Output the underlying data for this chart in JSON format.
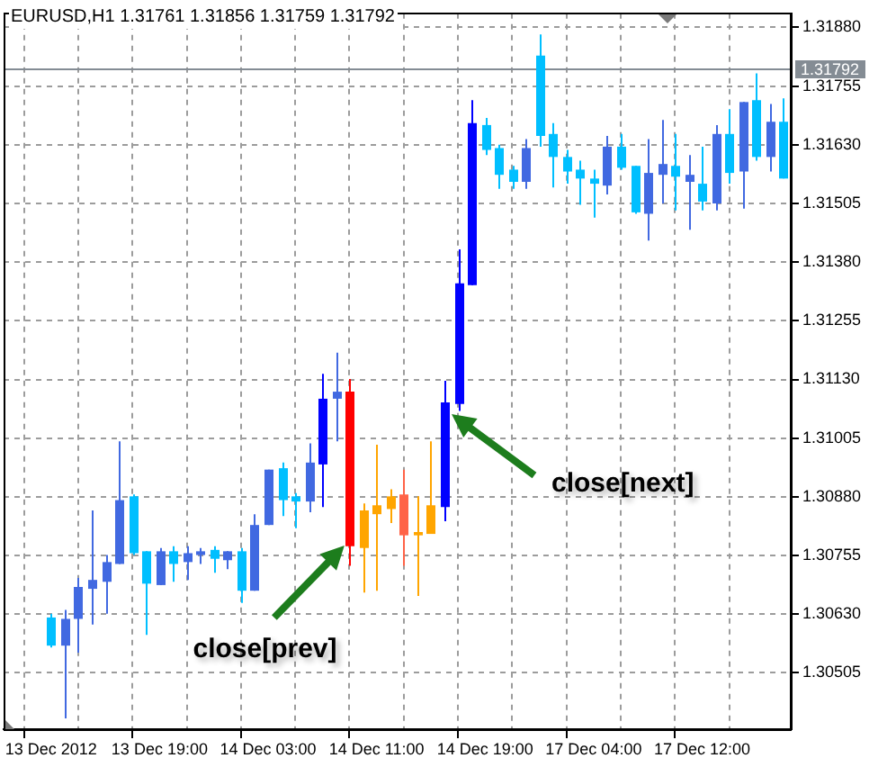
{
  "chart_data": {
    "type": "candlestick",
    "title": "EURUSD,H1 1.31761 1.31856 1.31759 1.31792",
    "categories": [
      "13 Dec 2012",
      null,
      null,
      null,
      null,
      null,
      null,
      null,
      "13 Dec 19:00",
      null,
      null,
      null,
      null,
      null,
      null,
      null,
      "14 Dec 03:00",
      null,
      null,
      null,
      null,
      null,
      null,
      null,
      "14 Dec 11:00",
      null,
      null,
      null,
      null,
      null,
      null,
      null,
      "14 Dec 19:00",
      null,
      null,
      null,
      null,
      null,
      null,
      null,
      "17 Dec 04:00",
      null,
      null,
      null,
      null,
      null,
      null,
      null,
      "17 Dec 12:00",
      null,
      null,
      null,
      null,
      null,
      null
    ],
    "ohlc": [
      [
        1.30623,
        1.30631,
        1.30559,
        1.30563
      ],
      [
        1.30563,
        1.30639,
        1.30408,
        1.3062
      ],
      [
        1.3062,
        1.30707,
        1.30548,
        1.30688
      ],
      [
        1.30684,
        1.30851,
        1.30608,
        1.30703
      ],
      [
        1.30699,
        1.30756,
        1.30631,
        1.30741
      ],
      [
        1.30737,
        1.30998,
        1.30737,
        1.30873
      ],
      [
        1.30881,
        1.30885,
        1.30756,
        1.3076
      ],
      [
        1.30764,
        1.30764,
        1.30586,
        1.30695
      ],
      [
        1.30692,
        1.30771,
        1.30692,
        1.30764
      ],
      [
        1.30764,
        1.30775,
        1.30699,
        1.30737
      ],
      [
        1.30741,
        1.30775,
        1.30703,
        1.3076
      ],
      [
        1.30756,
        1.30771,
        1.30737,
        1.30764
      ],
      [
        1.30767,
        1.30775,
        1.30718,
        1.30748
      ],
      [
        1.30745,
        1.30764,
        1.30726,
        1.30764
      ],
      [
        1.30764,
        1.30771,
        1.30654,
        1.3068
      ],
      [
        1.3068,
        1.30843,
        1.3068,
        1.3082
      ],
      [
        1.3082,
        1.30938,
        1.3082,
        1.30938
      ],
      [
        1.30941,
        1.30953,
        1.30839,
        1.30873
      ],
      [
        1.30881,
        1.30888,
        1.30813,
        1.3087
      ],
      [
        1.3087,
        1.30994,
        1.30847,
        1.30953
      ],
      [
        1.30949,
        1.31142,
        1.30858,
        1.31089
      ],
      [
        1.31089,
        1.31187,
        1.30998,
        1.31104
      ],
      [
        1.31104,
        1.31131,
        1.30733,
        1.30775
      ],
      [
        1.30771,
        1.30866,
        1.30676,
        1.30851
      ],
      [
        1.30843,
        1.30991,
        1.3068,
        1.30862
      ],
      [
        1.30854,
        1.30896,
        1.30824,
        1.30881
      ],
      [
        1.30885,
        1.30938,
        1.30733,
        1.30798
      ],
      [
        1.30798,
        1.30881,
        1.30669,
        1.30805
      ],
      [
        1.30801,
        1.30998,
        1.30801,
        1.30862
      ],
      [
        1.30858,
        1.31127,
        1.30828,
        1.31081
      ],
      [
        1.31078,
        1.31407,
        1.31063,
        1.31335
      ],
      [
        1.31331,
        1.31725,
        1.31331,
        1.31676
      ],
      [
        1.31672,
        1.31687,
        1.31608,
        1.31619
      ],
      [
        1.31623,
        1.3163,
        1.31536,
        1.31566
      ],
      [
        1.31577,
        1.31585,
        1.31536,
        1.31551
      ],
      [
        1.31551,
        1.31642,
        1.31536,
        1.31623
      ],
      [
        1.3182,
        1.31865,
        1.31626,
        1.31649
      ],
      [
        1.31653,
        1.31676,
        1.31539,
        1.31604
      ],
      [
        1.31604,
        1.31619,
        1.31547,
        1.31573
      ],
      [
        1.31577,
        1.31596,
        1.31502,
        1.31558
      ],
      [
        1.31558,
        1.31577,
        1.31475,
        1.31547
      ],
      [
        1.31543,
        1.31649,
        1.31524,
        1.31626
      ],
      [
        1.31626,
        1.31653,
        1.31577,
        1.31581
      ],
      [
        1.31585,
        1.31585,
        1.31483,
        1.31486
      ],
      [
        1.31483,
        1.31642,
        1.31426,
        1.3157
      ],
      [
        1.31566,
        1.31683,
        1.31505,
        1.31589
      ],
      [
        1.31585,
        1.31653,
        1.3149,
        1.31562
      ],
      [
        1.31551,
        1.31608,
        1.31449,
        1.31566
      ],
      [
        1.31547,
        1.31626,
        1.3149,
        1.31509
      ],
      [
        1.31505,
        1.31672,
        1.3149,
        1.31653
      ],
      [
        1.31653,
        1.31706,
        1.31547,
        1.3157
      ],
      [
        1.31573,
        1.31721,
        1.31494,
        1.31721
      ],
      [
        1.31725,
        1.31782,
        1.31596,
        1.31604
      ],
      [
        1.31604,
        1.31717,
        1.31573,
        1.31679
      ],
      [
        1.31679,
        1.31729,
        1.31558,
        1.31558
      ]
    ],
    "colors": [
      "#00bfff",
      "#4169e1",
      "#4169e1",
      "#4169e1",
      "#4169e1",
      "#4169e1",
      "#00bfff",
      "#00bfff",
      "#4169e1",
      "#00bfff",
      "#4169e1",
      "#4169e1",
      "#00bfff",
      "#4169e1",
      "#00bfff",
      "#4169e1",
      "#4169e1",
      "#00bfff",
      "#00bfff",
      "#4169e1",
      "#0000ff",
      "#4169e1",
      "#ff0000",
      "#ffa500",
      "#ffa500",
      "#ffa500",
      "#ff6347",
      "#ffa500",
      "#ffa500",
      "#0000ff",
      "#0000ff",
      "#0000ff",
      "#00bfff",
      "#00bfff",
      "#00bfff",
      "#4169e1",
      "#00bfff",
      "#00bfff",
      "#00bfff",
      "#00bfff",
      "#00bfff",
      "#4169e1",
      "#00bfff",
      "#00bfff",
      "#4169e1",
      "#4169e1",
      "#00bfff",
      "#4169e1",
      "#00bfff",
      "#4169e1",
      "#00bfff",
      "#4169e1",
      "#00bfff",
      "#4169e1",
      "#00bfff"
    ],
    "ylim": [
      1.30385,
      1.3191
    ],
    "yticks": [
      1.30505,
      {
        "value": 1.3063,
        "label": "1.30630"
      },
      1.30755,
      {
        "value": 1.3088,
        "label": "1.30880"
      },
      1.31005,
      {
        "value": 1.3113,
        "label": "1.31130"
      },
      1.31255,
      {
        "value": 1.3138,
        "label": "1.31380"
      },
      1.31505,
      {
        "value": 1.3163,
        "label": "1.31630"
      },
      1.31755,
      {
        "value": 1.3188,
        "label": "1.31880"
      }
    ],
    "ref_lines": [
      {
        "axis": "y",
        "value": 1.31792,
        "label": "1.31792",
        "color": "#848c94"
      }
    ],
    "annotations": [
      "close[prev]",
      "close[next]"
    ],
    "grid": true
  }
}
